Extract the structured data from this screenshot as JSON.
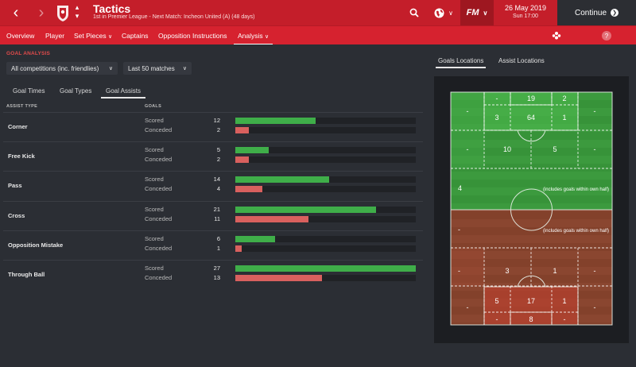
{
  "header": {
    "back_icon": "chevron-left-icon",
    "forward_icon": "chevron-right-icon",
    "title": "Tactics",
    "subtitle": "1st in Premier League - Next Match: Incheon United (A) (48 days)",
    "date": "26 May 2019",
    "time": "Sun 17:00",
    "fm_label": "FM",
    "continue_label": "Continue",
    "accent": "#c41e2a"
  },
  "tabs": {
    "overview": "Overview",
    "player": "Player",
    "set_pieces": "Set Pieces",
    "captains": "Captains",
    "opposition": "Opposition Instructions",
    "analysis": "Analysis",
    "help": "?"
  },
  "left": {
    "section_title": "GOAL ANALYSIS",
    "competition_filter": "All competitions (inc. friendlies)",
    "matches_filter": "Last 50 matches",
    "subtabs": [
      "Goal Times",
      "Goal Types",
      "Goal Assists"
    ],
    "col_assist_type": "ASSIST TYPE",
    "col_goals": "GOALS",
    "scored_label": "Scored",
    "conceded_label": "Conceded",
    "max_value": 27,
    "scored_color": "#3fae49",
    "conceded_color": "#d9605e",
    "rows": [
      {
        "name": "Corner",
        "scored": 12,
        "conceded": 2
      },
      {
        "name": "Free Kick",
        "scored": 5,
        "conceded": 2
      },
      {
        "name": "Pass",
        "scored": 14,
        "conceded": 4
      },
      {
        "name": "Cross",
        "scored": 21,
        "conceded": 11
      },
      {
        "name": "Opposition Mistake",
        "scored": 6,
        "conceded": 1
      },
      {
        "name": "Through Ball",
        "scored": 27,
        "conceded": 13
      }
    ]
  },
  "right": {
    "tabs": [
      "Goals Locations",
      "Assist Locations"
    ],
    "own_half_note": "(includes goals within own half)",
    "attack": {
      "row1": [
        "-",
        "19",
        "2"
      ],
      "row2": [
        "3",
        "64",
        "1"
      ],
      "side": [
        "-",
        "-"
      ],
      "mid": [
        "-",
        "10",
        "5",
        "-"
      ],
      "half": "4"
    },
    "defence": {
      "half": "-",
      "mid": [
        "-",
        "3",
        "1",
        "-"
      ],
      "row1": [
        "5",
        "17",
        "1"
      ],
      "row2": [
        "-",
        "8",
        "-"
      ],
      "side": [
        "-",
        "-"
      ]
    }
  }
}
